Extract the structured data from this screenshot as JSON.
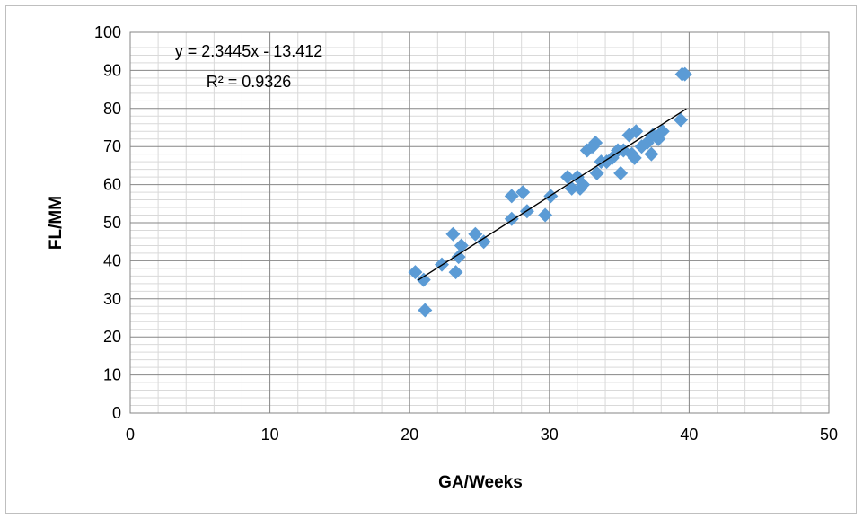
{
  "chart_data": {
    "type": "scatter",
    "title": "",
    "xlabel": "GA/Weeks",
    "ylabel": "FL/MM",
    "xlim": [
      0,
      50
    ],
    "ylim": [
      0,
      100
    ],
    "x_ticks": [
      0,
      10,
      20,
      30,
      40,
      50
    ],
    "y_ticks": [
      0,
      10,
      20,
      30,
      40,
      50,
      60,
      70,
      80,
      90,
      100
    ],
    "grid": true,
    "legend": "none",
    "marker": "diamond",
    "marker_color": "#5B9BD5",
    "trendline": {
      "type": "linear",
      "slope": 2.3445,
      "intercept": -13.412,
      "x_range": [
        20.6,
        39.8
      ],
      "color": "#000000",
      "equation_label": "y = 2.3445x - 13.412",
      "r2_label": "R² = 0.9326"
    },
    "points": [
      {
        "x": 20.4,
        "y": 37
      },
      {
        "x": 21.0,
        "y": 35
      },
      {
        "x": 21.1,
        "y": 27
      },
      {
        "x": 22.3,
        "y": 39
      },
      {
        "x": 23.1,
        "y": 47
      },
      {
        "x": 23.3,
        "y": 37
      },
      {
        "x": 23.5,
        "y": 41
      },
      {
        "x": 23.7,
        "y": 44
      },
      {
        "x": 24.7,
        "y": 47
      },
      {
        "x": 25.3,
        "y": 45
      },
      {
        "x": 27.3,
        "y": 51
      },
      {
        "x": 27.3,
        "y": 57
      },
      {
        "x": 28.1,
        "y": 58
      },
      {
        "x": 28.4,
        "y": 53
      },
      {
        "x": 29.7,
        "y": 52
      },
      {
        "x": 30.1,
        "y": 57
      },
      {
        "x": 31.3,
        "y": 62
      },
      {
        "x": 31.6,
        "y": 59
      },
      {
        "x": 32.0,
        "y": 62
      },
      {
        "x": 32.2,
        "y": 59
      },
      {
        "x": 32.4,
        "y": 60
      },
      {
        "x": 32.7,
        "y": 69
      },
      {
        "x": 33.1,
        "y": 70
      },
      {
        "x": 33.3,
        "y": 71
      },
      {
        "x": 33.4,
        "y": 63
      },
      {
        "x": 33.7,
        "y": 66
      },
      {
        "x": 34.1,
        "y": 66
      },
      {
        "x": 34.5,
        "y": 67
      },
      {
        "x": 34.9,
        "y": 69
      },
      {
        "x": 35.1,
        "y": 63
      },
      {
        "x": 35.3,
        "y": 69
      },
      {
        "x": 35.7,
        "y": 73
      },
      {
        "x": 35.9,
        "y": 68
      },
      {
        "x": 36.1,
        "y": 67
      },
      {
        "x": 36.2,
        "y": 74
      },
      {
        "x": 36.6,
        "y": 70
      },
      {
        "x": 37.0,
        "y": 71
      },
      {
        "x": 37.3,
        "y": 68
      },
      {
        "x": 37.4,
        "y": 73
      },
      {
        "x": 37.8,
        "y": 72
      },
      {
        "x": 38.1,
        "y": 74
      },
      {
        "x": 39.4,
        "y": 77
      },
      {
        "x": 39.5,
        "y": 89
      },
      {
        "x": 39.7,
        "y": 89
      }
    ]
  }
}
